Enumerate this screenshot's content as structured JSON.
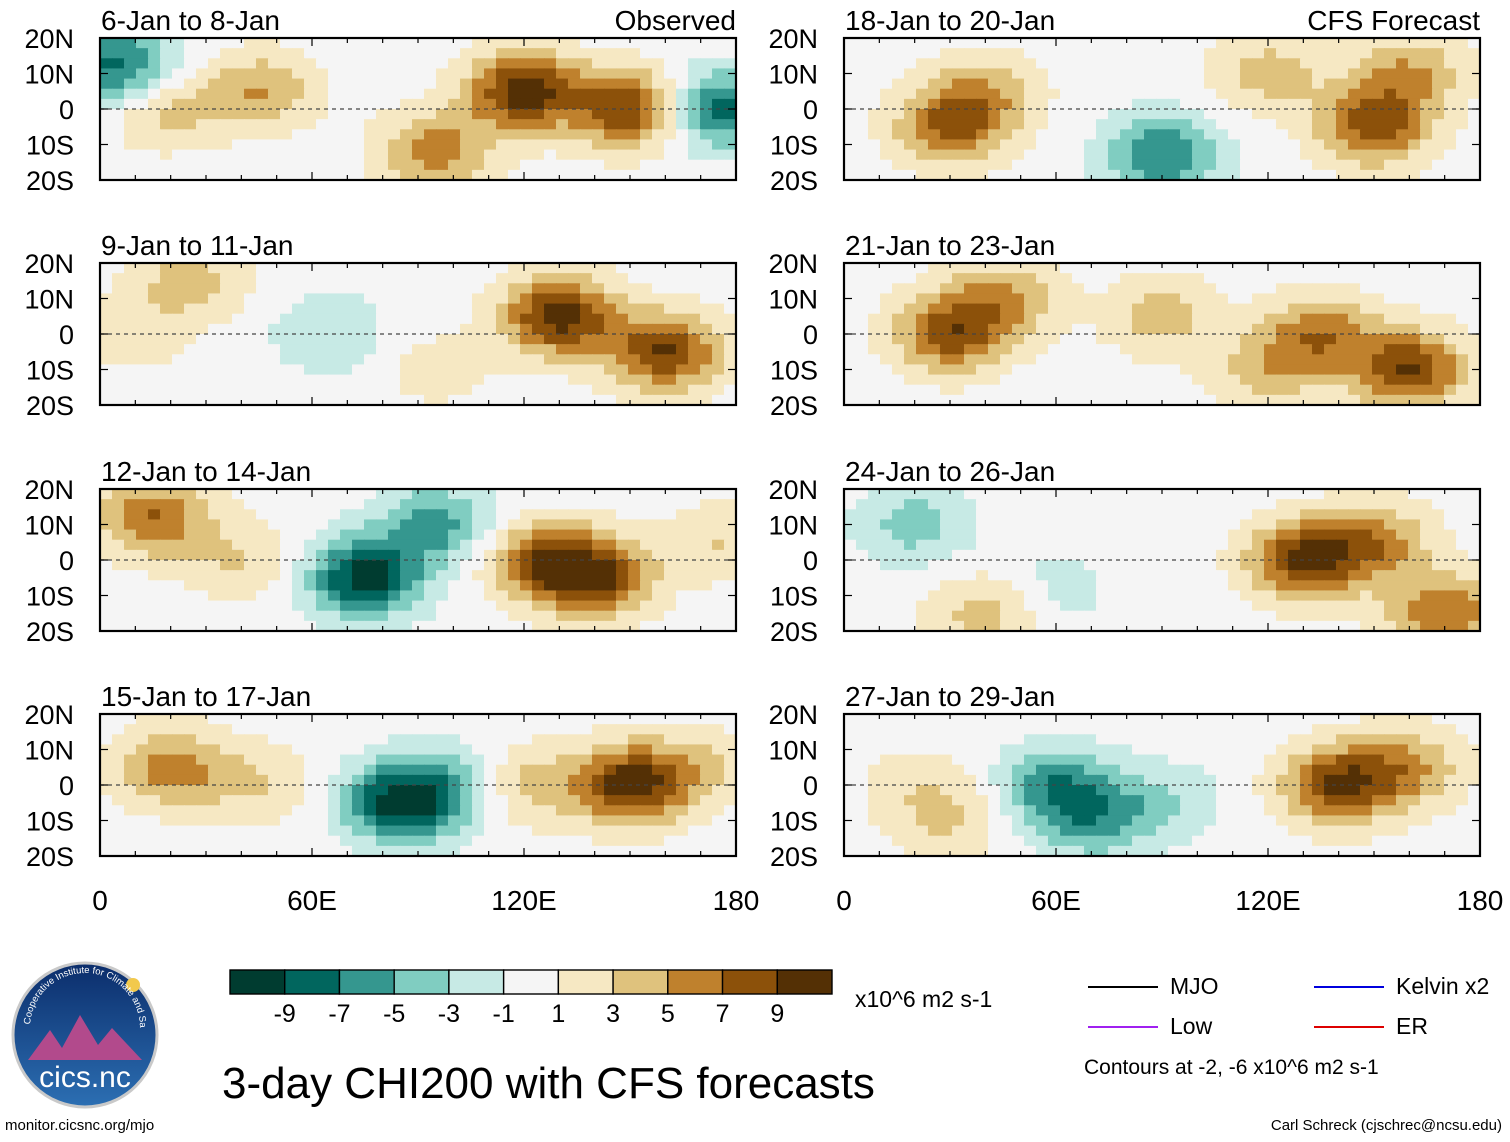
{
  "chart_data": {
    "type": "heatmap",
    "title": "3-day CHI200 with CFS forecasts",
    "variable": "CHI200 anomaly",
    "units": "x10^6 m2 s-1",
    "x_ticks": [
      "0",
      "60E",
      "120E",
      "180"
    ],
    "y_ticks": [
      "20N",
      "10N",
      "0",
      "10S",
      "20S"
    ],
    "xlim": [
      0,
      180
    ],
    "ylim": [
      -20,
      20
    ],
    "columns": [
      {
        "source": "Observed",
        "panels": [
          {
            "period": "6-Jan to 8-Jan",
            "tag": "Observed",
            "centers": [
              [
                5,
                12,
                -8
              ],
              [
                18,
                0,
                4
              ],
              [
                45,
                5,
                5
              ],
              [
                120,
                5,
                10
              ],
              [
                150,
                0,
                9
              ],
              [
                175,
                0,
                -8
              ],
              [
                95,
                -12,
                6
              ]
            ]
          },
          {
            "period": "9-Jan to 11-Jan",
            "tag": "",
            "centers": [
              [
                10,
                0,
                2
              ],
              [
                25,
                15,
                4
              ],
              [
                65,
                0,
                -3
              ],
              [
                130,
                5,
                10
              ],
              [
                160,
                -5,
                9
              ],
              [
                95,
                -10,
                2
              ]
            ]
          },
          {
            "period": "12-Jan to 14-Jan",
            "tag": "",
            "centers": [
              [
                15,
                12,
                7
              ],
              [
                40,
                0,
                3
              ],
              [
                75,
                -5,
                -10
              ],
              [
                95,
                10,
                -6
              ],
              [
                125,
                0,
                7
              ],
              [
                140,
                -5,
                9
              ],
              [
                175,
                5,
                3
              ]
            ]
          },
          {
            "period": "15-Jan to 17-Jan",
            "tag": "",
            "centers": [
              [
                20,
                5,
                6
              ],
              [
                45,
                0,
                3
              ],
              [
                85,
                -5,
                -10
              ],
              [
                100,
                0,
                -4
              ],
              [
                120,
                0,
                4
              ],
              [
                150,
                0,
                10
              ],
              [
                170,
                5,
                3
              ]
            ]
          }
        ]
      },
      {
        "source": "CFS Forecast",
        "panels": [
          {
            "period": "18-Jan to 20-Jan",
            "tag": "CFS Forecast",
            "centers": [
              [
                30,
                -5,
                7
              ],
              [
                40,
                5,
                4
              ],
              [
                90,
                -13,
                -7
              ],
              [
                120,
                10,
                4
              ],
              [
                150,
                -5,
                8
              ],
              [
                160,
                10,
                5
              ]
            ]
          },
          {
            "period": "21-Jan to 23-Jan",
            "tag": "",
            "centers": [
              [
                30,
                0,
                8
              ],
              [
                45,
                10,
                5
              ],
              [
                90,
                5,
                4
              ],
              [
                135,
                0,
                6
              ],
              [
                160,
                -10,
                9
              ],
              [
                120,
                -10,
                4
              ]
            ]
          },
          {
            "period": "24-Jan to 26-Jan",
            "tag": "",
            "centers": [
              [
                20,
                10,
                -4
              ],
              [
                40,
                -15,
                4
              ],
              [
                60,
                -8,
                -2
              ],
              [
                130,
                0,
                9
              ],
              [
                150,
                5,
                6
              ],
              [
                170,
                -15,
                7
              ]
            ]
          },
          {
            "period": "27-Jan to 29-Jan",
            "tag": "",
            "centers": [
              [
                20,
                0,
                2
              ],
              [
                30,
                -10,
                3
              ],
              [
                60,
                0,
                -6
              ],
              [
                70,
                -10,
                -5
              ],
              [
                90,
                -5,
                -3
              ],
              [
                140,
                0,
                9
              ],
              [
                160,
                5,
                5
              ]
            ]
          }
        ]
      }
    ],
    "colorbar": {
      "labels": [
        "-9",
        "-7",
        "-5",
        "-3",
        "-1",
        "1",
        "3",
        "5",
        "7",
        "9"
      ],
      "colors": [
        "#003c30",
        "#01665e",
        "#35978f",
        "#80cdc1",
        "#c7eae5",
        "#f5f5f5",
        "#f6e8c3",
        "#dfc27d",
        "#bf812d",
        "#8c510a",
        "#543005"
      ],
      "units": "x10^6 m2 s-1"
    },
    "legend": [
      {
        "label": "MJO",
        "color": "#000000"
      },
      {
        "label": "Kelvin x2",
        "color": "#0000dd"
      },
      {
        "label": "Low",
        "color": "#a020f0"
      },
      {
        "label": "ER",
        "color": "#dd0000"
      }
    ],
    "contour_note": "Contours at -2, -6 x10^6 m2 s-1"
  },
  "footer": {
    "logo_text": "cics.nc",
    "logo_ring_text": "Cooperative Institute for Climate and Satellites",
    "left": "monitor.cicsnc.org/mjo",
    "right": "Carl Schreck (cjschrec@ncsu.edu)"
  }
}
